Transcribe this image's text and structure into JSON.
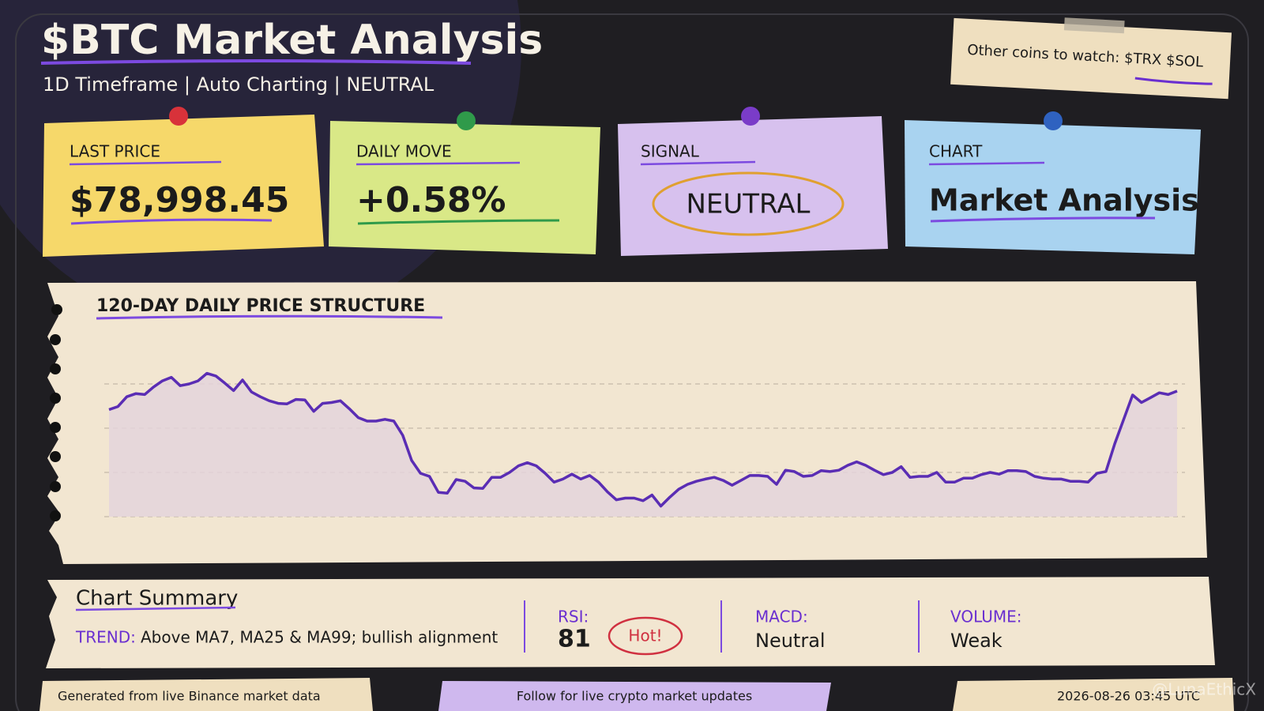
{
  "header": {
    "title": "$BTC Market Analysis",
    "subtitle": "1D Timeframe | Auto Charting | NEUTRAL"
  },
  "watch_note": "Other coins to watch: $TRX $SOL",
  "cards": [
    {
      "label": "LAST PRICE",
      "value": "$78,998.45"
    },
    {
      "label": "DAILY MOVE",
      "value": "+0.58%"
    },
    {
      "label": "SIGNAL",
      "value": "NEUTRAL"
    },
    {
      "label": "CHART",
      "value": "Market Analysis"
    }
  ],
  "chart_data": {
    "type": "line",
    "title": "120-DAY DAILY PRICE STRUCTURE",
    "color": "#5a2db4",
    "area_color": "#e4d3dc",
    "ylim": [
      0,
      3.5
    ],
    "grid_lines": [
      0,
      1,
      2,
      3
    ],
    "values": [
      2.42,
      2.49,
      2.71,
      2.78,
      2.76,
      2.93,
      3.07,
      3.15,
      2.96,
      3.0,
      3.07,
      3.24,
      3.18,
      3.02,
      2.85,
      3.09,
      2.82,
      2.71,
      2.62,
      2.56,
      2.55,
      2.65,
      2.64,
      2.38,
      2.56,
      2.58,
      2.62,
      2.44,
      2.24,
      2.16,
      2.16,
      2.2,
      2.16,
      1.84,
      1.27,
      0.98,
      0.91,
      0.55,
      0.53,
      0.84,
      0.8,
      0.65,
      0.64,
      0.89,
      0.89,
      1.0,
      1.15,
      1.22,
      1.15,
      0.98,
      0.78,
      0.85,
      0.96,
      0.85,
      0.93,
      0.78,
      0.56,
      0.38,
      0.42,
      0.42,
      0.36,
      0.49,
      0.24,
      0.44,
      0.62,
      0.73,
      0.8,
      0.85,
      0.89,
      0.82,
      0.71,
      0.82,
      0.93,
      0.93,
      0.91,
      0.73,
      1.05,
      1.02,
      0.91,
      0.93,
      1.04,
      1.02,
      1.05,
      1.16,
      1.24,
      1.16,
      1.05,
      0.95,
      1.0,
      1.13,
      0.89,
      0.91,
      0.91,
      1.0,
      0.78,
      0.78,
      0.87,
      0.87,
      0.95,
      1.0,
      0.96,
      1.04,
      1.04,
      1.02,
      0.91,
      0.87,
      0.85,
      0.85,
      0.8,
      0.8,
      0.78,
      0.98,
      1.02,
      1.65,
      2.2,
      2.75,
      2.58,
      2.69,
      2.8,
      2.76,
      2.84
    ]
  },
  "summary": {
    "title": "Chart Summary",
    "trend_label": "TREND:",
    "trend": "Above MA7, MA25 & MA99; bullish alignment",
    "rsi_label": "RSI:",
    "rsi": 81,
    "rsi_tag": "Hot!",
    "macd_label": "MACD:",
    "macd": "Neutral",
    "volume_label": "VOLUME:",
    "volume": "Weak"
  },
  "footer": {
    "left": "Generated from live Binance market data",
    "center": "Follow for live crypto market updates",
    "right": "2026-08-26 03:45 UTC"
  },
  "watermark": "@LunaEthicX"
}
